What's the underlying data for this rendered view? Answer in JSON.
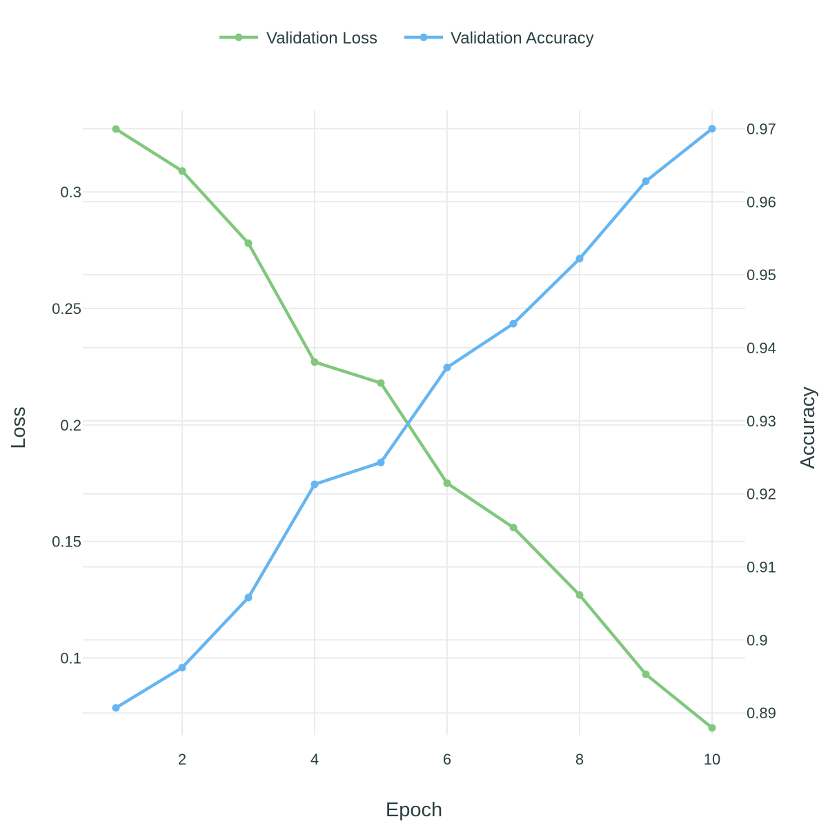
{
  "chart_data": {
    "type": "line",
    "x": [
      1,
      2,
      3,
      4,
      5,
      6,
      7,
      8,
      9,
      10
    ],
    "xlabel": "Epoch",
    "x_ticks": [
      2,
      4,
      6,
      8,
      10
    ],
    "xlim": [
      0.5,
      10.5
    ],
    "ylabel": "Loss",
    "ylim": [
      0.067,
      0.335
    ],
    "y_ticks": [
      0.1,
      0.15,
      0.2,
      0.25,
      0.3
    ],
    "y2label": "Accuracy",
    "y2lim": [
      0.887,
      0.9725
    ],
    "y2_ticks": [
      0.89,
      0.9,
      0.91,
      0.92,
      0.93,
      0.94,
      0.95,
      0.96,
      0.97
    ],
    "grid": true,
    "legend_position": "top-center",
    "series": [
      {
        "name": "Validation Loss",
        "axis": "left",
        "color": "#81c77d",
        "values": [
          0.327,
          0.309,
          0.278,
          0.227,
          0.218,
          0.175,
          0.156,
          0.127,
          0.093,
          0.07
        ]
      },
      {
        "name": "Validation Accuracy",
        "axis": "right",
        "color": "#65b5f0",
        "values": [
          0.8907,
          0.8962,
          0.9058,
          0.9213,
          0.9243,
          0.9373,
          0.9433,
          0.9522,
          0.9628,
          0.97
        ]
      }
    ]
  }
}
